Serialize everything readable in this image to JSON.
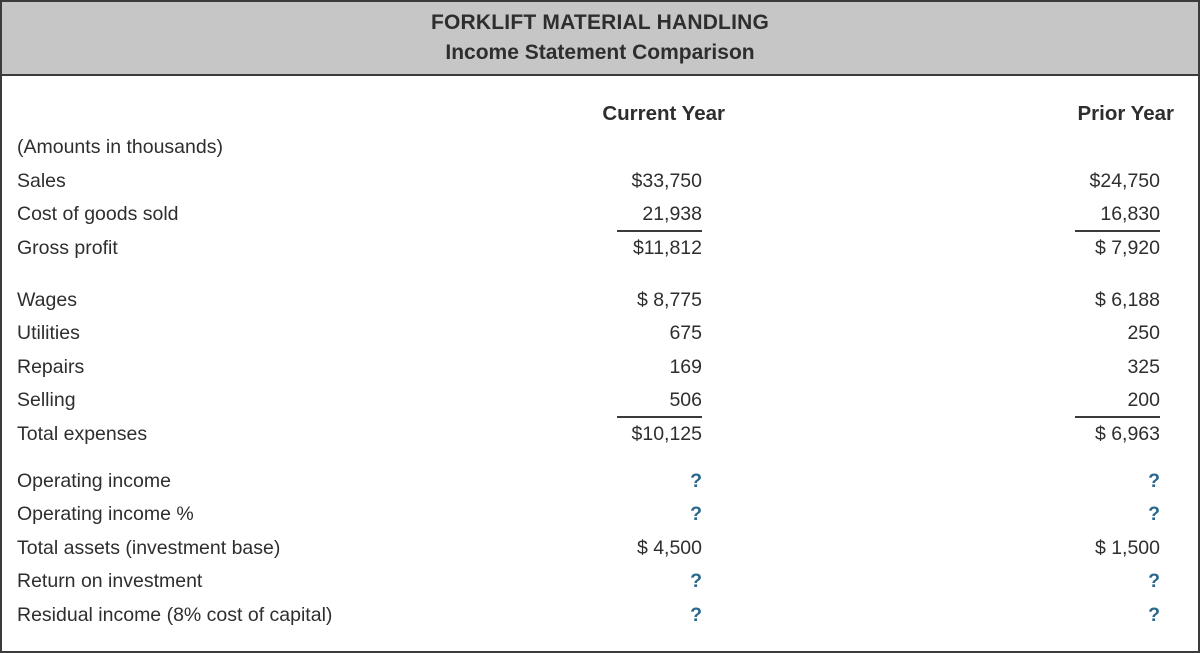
{
  "header": {
    "title": "FORKLIFT MATERIAL HANDLING",
    "subtitle": "Income Statement Comparison"
  },
  "columns": {
    "current": "Current Year",
    "prior": "Prior Year"
  },
  "note": "(Amounts in thousands)",
  "colors": {
    "header_bg": "#c6c6c6",
    "border": "#3b3b3b",
    "text": "#2e2e2e",
    "unknown_value": "#2a688d"
  },
  "rows": [
    {
      "label": "Sales",
      "current": "$33,750",
      "prior": "$24,750"
    },
    {
      "label": "Cost of goods sold",
      "current": "21,938",
      "prior": "16,830",
      "underline": true
    },
    {
      "label": "Gross profit",
      "current": "$11,812",
      "prior": "$ 7,920"
    },
    {
      "label": "Wages",
      "current": "$ 8,775",
      "prior": "$ 6,188"
    },
    {
      "label": "Utilities",
      "current": "675",
      "prior": "250"
    },
    {
      "label": "Repairs",
      "current": "169",
      "prior": "325"
    },
    {
      "label": "Selling",
      "current": "506",
      "prior": "200",
      "underline": true
    },
    {
      "label": "Total expenses",
      "current": "$10,125",
      "prior": "$ 6,963"
    },
    {
      "label": "Operating income",
      "current": "?",
      "prior": "?",
      "unknown": true
    },
    {
      "label": "Operating income %",
      "current": "?",
      "prior": "?",
      "unknown": true
    },
    {
      "label": "Total assets (investment base)",
      "current": "$ 4,500",
      "prior": "$ 1,500"
    },
    {
      "label": "Return on investment",
      "current": "?",
      "prior": "?",
      "unknown": true
    },
    {
      "label": "Residual income (8% cost of capital)",
      "current": "?",
      "prior": "?",
      "unknown": true
    }
  ]
}
